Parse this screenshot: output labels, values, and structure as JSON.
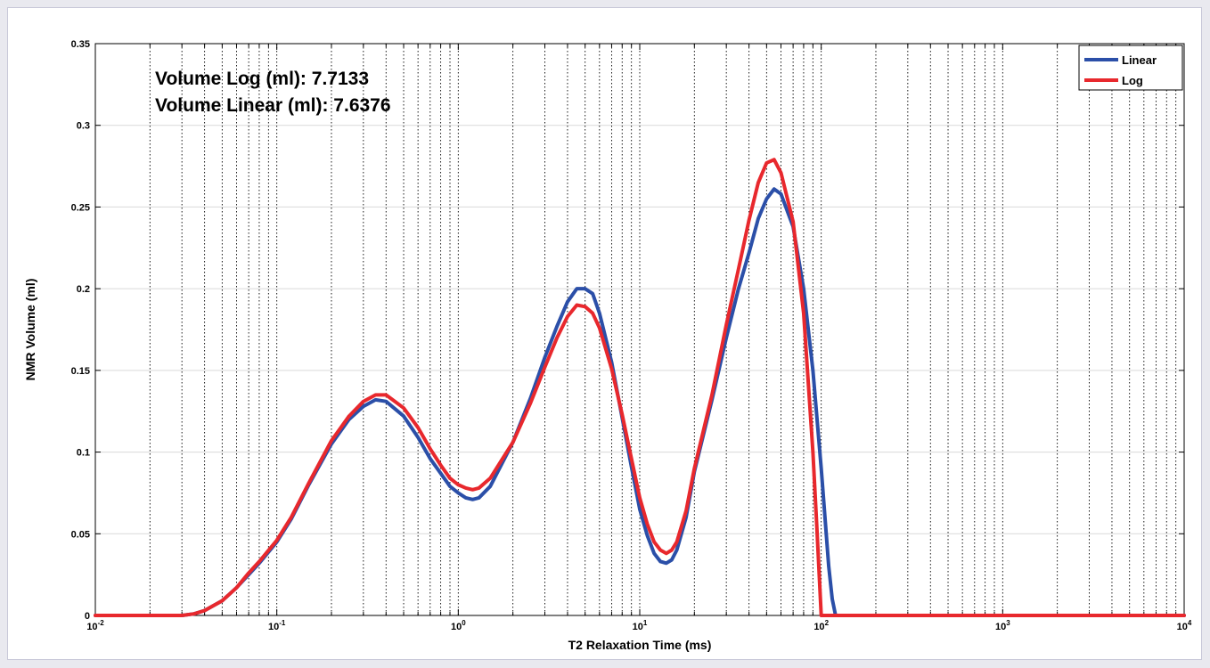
{
  "chart_data": {
    "type": "line",
    "title": "",
    "xlabel": "T2 Relaxation Time (ms)",
    "ylabel": "NMR Volume (ml)",
    "xscale": "log",
    "xlim": [
      0.01,
      10000
    ],
    "ylim": [
      0,
      0.35
    ],
    "x_tick_labels": [
      {
        "base": "10",
        "exp": "-2"
      },
      {
        "base": "10",
        "exp": "-1"
      },
      {
        "base": "10",
        "exp": "0"
      },
      {
        "base": "10",
        "exp": "1"
      },
      {
        "base": "10",
        "exp": "2"
      },
      {
        "base": "10",
        "exp": "3"
      },
      {
        "base": "10",
        "exp": "4"
      }
    ],
    "y_tick_labels": [
      "0",
      "0.05",
      "0.1",
      "0.15",
      "0.2",
      "0.25",
      "0.3",
      "0.35"
    ],
    "y_ticks": [
      0,
      0.05,
      0.1,
      0.15,
      0.2,
      0.25,
      0.3,
      0.35
    ],
    "grid": "vertical dotted at log minor ticks, horizontal light gray",
    "legend_position": "top-right",
    "annotations": [
      "Volume Log (ml): 7.7133",
      "Volume Linear (ml): 7.6376"
    ],
    "series": [
      {
        "name": "Linear",
        "color": "#2b4fa8",
        "x": [
          0.01,
          0.02,
          0.03,
          0.035,
          0.04,
          0.05,
          0.06,
          0.07,
          0.08,
          0.1,
          0.12,
          0.15,
          0.2,
          0.25,
          0.3,
          0.35,
          0.4,
          0.5,
          0.6,
          0.7,
          0.8,
          0.9,
          1.0,
          1.1,
          1.2,
          1.3,
          1.5,
          2,
          2.5,
          3,
          3.5,
          4,
          4.5,
          5,
          5.5,
          6,
          7,
          8,
          9,
          10,
          11,
          12,
          13,
          14,
          15,
          16,
          18,
          20,
          25,
          30,
          35,
          40,
          45,
          50,
          55,
          60,
          70,
          80,
          90,
          100,
          110,
          115,
          120,
          200,
          500,
          1000,
          5000,
          10000
        ],
        "y": [
          0,
          0,
          0,
          0.001,
          0.003,
          0.009,
          0.017,
          0.025,
          0.032,
          0.045,
          0.059,
          0.08,
          0.105,
          0.12,
          0.128,
          0.132,
          0.131,
          0.122,
          0.109,
          0.096,
          0.087,
          0.079,
          0.075,
          0.072,
          0.071,
          0.072,
          0.079,
          0.106,
          0.133,
          0.158,
          0.177,
          0.192,
          0.2,
          0.2,
          0.197,
          0.185,
          0.155,
          0.121,
          0.091,
          0.065,
          0.049,
          0.038,
          0.033,
          0.032,
          0.034,
          0.04,
          0.06,
          0.088,
          0.132,
          0.17,
          0.2,
          0.222,
          0.243,
          0.255,
          0.261,
          0.258,
          0.238,
          0.2,
          0.15,
          0.09,
          0.03,
          0.01,
          0,
          0,
          0,
          0,
          0,
          0
        ]
      },
      {
        "name": "Log",
        "color": "#e8282d",
        "x": [
          0.01,
          0.02,
          0.03,
          0.035,
          0.04,
          0.05,
          0.06,
          0.07,
          0.08,
          0.1,
          0.12,
          0.15,
          0.2,
          0.25,
          0.3,
          0.35,
          0.4,
          0.5,
          0.6,
          0.7,
          0.8,
          0.9,
          1.0,
          1.1,
          1.2,
          1.3,
          1.5,
          2,
          2.5,
          3,
          3.5,
          4,
          4.5,
          5,
          5.5,
          6,
          7,
          8,
          9,
          10,
          11,
          12,
          13,
          14,
          15,
          16,
          18,
          20,
          25,
          30,
          35,
          40,
          45,
          50,
          55,
          60,
          70,
          80,
          90,
          95,
          100,
          200,
          500,
          1000,
          5000,
          10000
        ],
        "y": [
          0,
          0,
          0,
          0.001,
          0.003,
          0.009,
          0.017,
          0.026,
          0.033,
          0.046,
          0.06,
          0.081,
          0.107,
          0.122,
          0.131,
          0.135,
          0.135,
          0.127,
          0.115,
          0.102,
          0.092,
          0.084,
          0.08,
          0.078,
          0.077,
          0.078,
          0.084,
          0.106,
          0.13,
          0.152,
          0.17,
          0.183,
          0.19,
          0.189,
          0.185,
          0.176,
          0.151,
          0.123,
          0.096,
          0.072,
          0.056,
          0.045,
          0.04,
          0.038,
          0.04,
          0.045,
          0.064,
          0.09,
          0.135,
          0.178,
          0.212,
          0.242,
          0.265,
          0.277,
          0.279,
          0.271,
          0.241,
          0.185,
          0.1,
          0.05,
          0,
          0,
          0,
          0,
          0,
          0
        ]
      }
    ]
  }
}
